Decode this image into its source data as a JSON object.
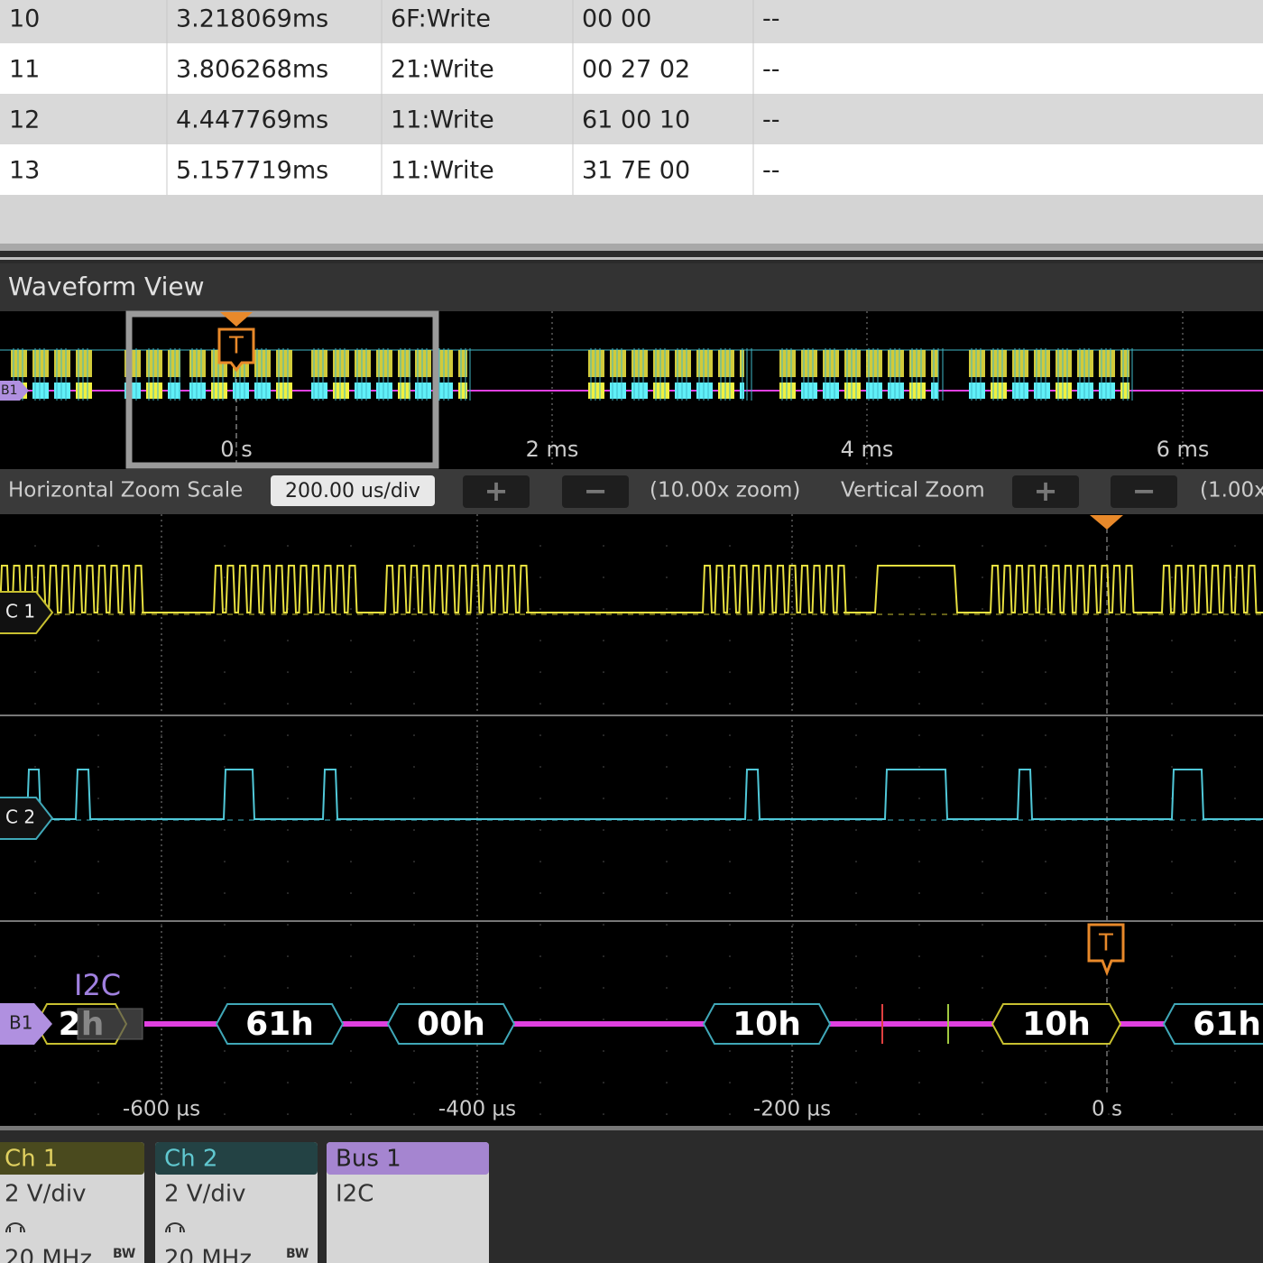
{
  "table": {
    "rows": [
      [
        "10",
        "3.218069ms",
        "6F:Write",
        "00 00",
        "--"
      ],
      [
        "11",
        "3.806268ms",
        "21:Write",
        "00 27 02",
        "--"
      ],
      [
        "12",
        "4.447769ms",
        "11:Write",
        "61 00 10",
        "--"
      ],
      [
        "13",
        "5.157719ms",
        "11:Write",
        "31 7E 00",
        "--"
      ]
    ]
  },
  "waveform_view": {
    "title": "Waveform View",
    "overview": {
      "bus_label": "B1",
      "trigger": "T",
      "time_labels": [
        "0 s",
        "2 ms",
        "4 ms",
        "6 ms"
      ]
    },
    "zoom_bar": {
      "horizontal_label": "Horizontal Zoom Scale",
      "horizontal_scale": "200.00 us/div",
      "plus": "+",
      "minus": "−",
      "horizontal_zoom": "(10.00x zoom)",
      "vertical_label": "Vertical Zoom",
      "vertical_zoom": "(1.00x"
    },
    "channels": [
      {
        "label": "C 1"
      },
      {
        "label": "C 2"
      }
    ],
    "bus": {
      "label": "B1",
      "protocol": "I2C",
      "packets": [
        "2h",
        "61h",
        "00h",
        "10h",
        "10h",
        "61h"
      ]
    },
    "trigger": "T",
    "time_labels": [
      "-600 µs",
      "-400 µs",
      "-200 µs",
      "0 s"
    ]
  },
  "badges": [
    {
      "title": "Ch 1",
      "scale": "2 V/div",
      "bandwidth": "20 MHz",
      "bw_icon": "BW"
    },
    {
      "title": "Ch 2",
      "scale": "2 V/div",
      "bandwidth": "20 MHz",
      "bw_icon": "BW"
    },
    {
      "title": "Bus 1",
      "protocol": "I2C"
    }
  ]
}
